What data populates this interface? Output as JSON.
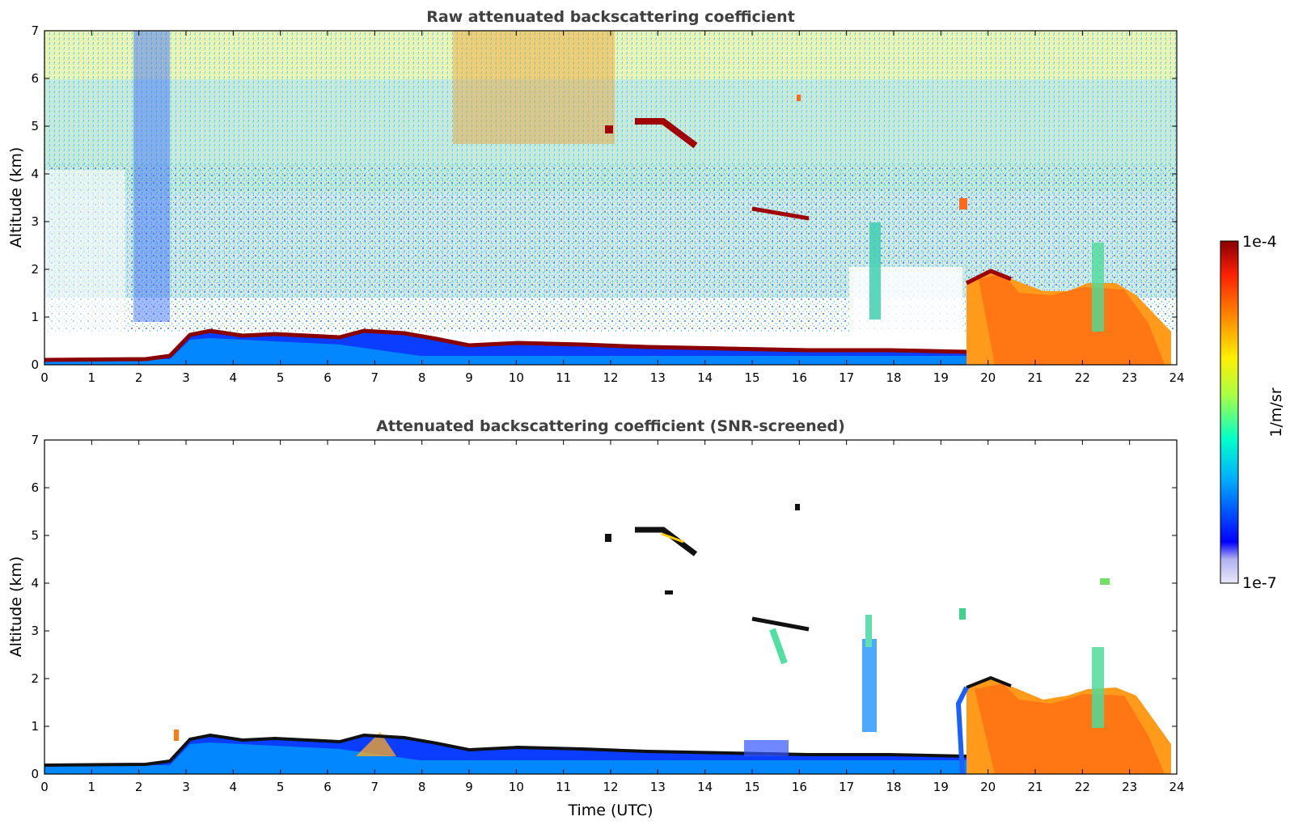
{
  "chart_data": [
    {
      "type": "heatmap",
      "title": "Raw attenuated backscattering coefficient",
      "xlabel": "",
      "ylabel": "Altitude (km)",
      "xlim": [
        0,
        24
      ],
      "ylim": [
        0,
        7
      ],
      "xticks": [
        "0",
        "1",
        "2",
        "3",
        "4",
        "5",
        "6",
        "7",
        "8",
        "9",
        "10",
        "11",
        "12",
        "13",
        "14",
        "15",
        "16",
        "17",
        "18",
        "19",
        "20",
        "21",
        "22",
        "23",
        "24"
      ],
      "yticks": [
        "0",
        "1",
        "2",
        "3",
        "4",
        "5",
        "6",
        "7"
      ],
      "features": {
        "boundary_layer_top_km": [
          {
            "t": 0,
            "h": 0.12
          },
          {
            "t": 2.2,
            "h": 0.15
          },
          {
            "t": 3.2,
            "h": 0.55
          },
          {
            "t": 3.5,
            "h": 0.65
          },
          {
            "t": 5,
            "h": 0.55
          },
          {
            "t": 7.5,
            "h": 0.6
          },
          {
            "t": 9,
            "h": 0.4
          },
          {
            "t": 12,
            "h": 0.4
          },
          {
            "t": 15,
            "h": 0.3
          },
          {
            "t": 18,
            "h": 0.28
          },
          {
            "t": 19.5,
            "h": 0.3
          }
        ],
        "clouds": [
          {
            "t_start": 11.9,
            "t_end": 12.0,
            "h": 4.9
          },
          {
            "t_start": 12.5,
            "t_end": 12.9,
            "h": 5.1
          },
          {
            "t_start": 13.2,
            "t_end": 13.8,
            "h": 4.75
          },
          {
            "t_start": 14.9,
            "t_end": 15.9,
            "h": 3.05
          },
          {
            "t_start": 15.85,
            "t_end": 15.95,
            "h": 5.6
          },
          {
            "t_start": 17.3,
            "t_end": 17.6,
            "h": 1.5
          },
          {
            "t_start": 19.5,
            "t_end": 19.6,
            "h": 3.4
          },
          {
            "t_start": 19.7,
            "t_end": 20.5,
            "h": 1.8
          },
          {
            "t_start": 21.5,
            "t_end": 23.5,
            "h": 1.6
          }
        ],
        "precipitation_period": [
          19.7,
          24
        ]
      }
    },
    {
      "type": "heatmap",
      "title": "Attenuated backscattering coefficient (SNR-screened)",
      "xlabel": "Time (UTC)",
      "ylabel": "Altitude (km)",
      "xlim": [
        0,
        24
      ],
      "ylim": [
        0,
        7
      ],
      "xticks": [
        "0",
        "1",
        "2",
        "3",
        "4",
        "5",
        "6",
        "7",
        "8",
        "9",
        "10",
        "11",
        "12",
        "13",
        "14",
        "15",
        "16",
        "17",
        "18",
        "19",
        "20",
        "21",
        "22",
        "23",
        "24"
      ],
      "yticks": [
        "0",
        "1",
        "2",
        "3",
        "4",
        "5",
        "6",
        "7"
      ]
    }
  ],
  "colorbar": {
    "label": "1/m/sr",
    "max_label": "1e-4",
    "min_label": "1e-7",
    "colormap": [
      "#e8e8f8",
      "#0000ff",
      "#00aaff",
      "#00ffcc",
      "#aaff44",
      "#ffee00",
      "#ff8800",
      "#ff2200",
      "#880000"
    ],
    "scale": "log"
  }
}
